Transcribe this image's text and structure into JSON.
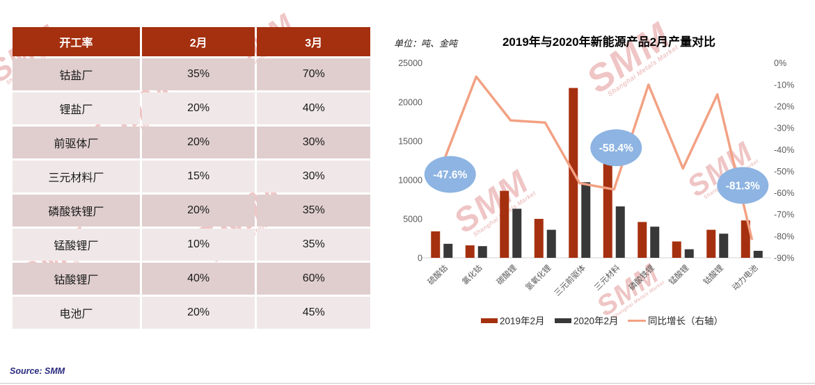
{
  "watermark": {
    "text": "SMM",
    "subtext": "Shanghai Metals Market"
  },
  "table": {
    "headers": [
      "开工率",
      "2月",
      "3月"
    ],
    "rows": [
      {
        "label": "钴盐厂",
        "feb": "35%",
        "mar": "70%"
      },
      {
        "label": "锂盐厂",
        "feb": "20%",
        "mar": "40%"
      },
      {
        "label": "前驱体厂",
        "feb": "20%",
        "mar": "30%"
      },
      {
        "label": "三元材料厂",
        "feb": "15%",
        "mar": "30%"
      },
      {
        "label": "磷酸铁锂厂",
        "feb": "20%",
        "mar": "35%"
      },
      {
        "label": "锰酸锂厂",
        "feb": "10%",
        "mar": "35%"
      },
      {
        "label": "钴酸锂厂",
        "feb": "40%",
        "mar": "60%"
      },
      {
        "label": "电池厂",
        "feb": "20%",
        "mar": "45%"
      }
    ]
  },
  "chart": {
    "unit_label": "单位：吨、金吨"
  },
  "chart_data": {
    "type": "bar",
    "title": "2019年与2020年新能源产品2月产量对比",
    "categories": [
      "硫酸钴",
      "氯化钴",
      "碳酸锂",
      "氢氧化锂",
      "三元前驱体",
      "三元材料",
      "磷酸铁锂",
      "锰酸锂",
      "钴酸锂",
      "动力电池"
    ],
    "series": [
      {
        "name": "2019年2月",
        "type": "bar",
        "axis": "left",
        "values": [
          3400,
          1600,
          8600,
          5000,
          21800,
          15900,
          4600,
          2100,
          3600,
          4800
        ]
      },
      {
        "name": "2020年2月",
        "type": "bar",
        "axis": "left",
        "values": [
          1800,
          1500,
          6300,
          3600,
          9700,
          6600,
          4000,
          1100,
          3100,
          900
        ]
      },
      {
        "name": "同比增长（右轴）",
        "type": "line",
        "axis": "right",
        "values_pct": [
          -47.6,
          -6.3,
          -26.5,
          -27.5,
          -55.5,
          -58.4,
          -10,
          -48.7,
          -14.5,
          -81.3
        ]
      }
    ],
    "left_axis": {
      "min": 0,
      "max": 25000,
      "ticks": [
        25000,
        20000,
        15000,
        10000,
        5000,
        0
      ]
    },
    "right_axis": {
      "min": -90,
      "max": 0,
      "ticks": [
        "0%",
        "-10%",
        "-20%",
        "-30%",
        "-40%",
        "-50%",
        "-60%",
        "-70%",
        "-80%",
        "-90%"
      ]
    },
    "callouts": [
      {
        "text": "-47.6%",
        "category_index": 0
      },
      {
        "text": "-58.4%",
        "category_index": 5
      },
      {
        "text": "-81.3%",
        "category_index": 9
      }
    ],
    "legend_position": "bottom",
    "grid": false
  },
  "colors": {
    "table_header_bg": "#A5300F",
    "row_alt_dark": "#E0CECE",
    "row_alt_light": "#F0E8E8",
    "bar_2019": "#A5300F",
    "bar_2020": "#383838",
    "line_color": "#F2A183",
    "callout_bg": "#8DB4E2",
    "callout_text": "#FFFFFF",
    "axis_text": "#595959",
    "legend_text": "#262626",
    "source_text": "#2B2B80",
    "divider": "#C9C9C9",
    "watermark": "rgba(197,48,48,0.28)"
  },
  "footer": {
    "source": "Source: SMM"
  }
}
